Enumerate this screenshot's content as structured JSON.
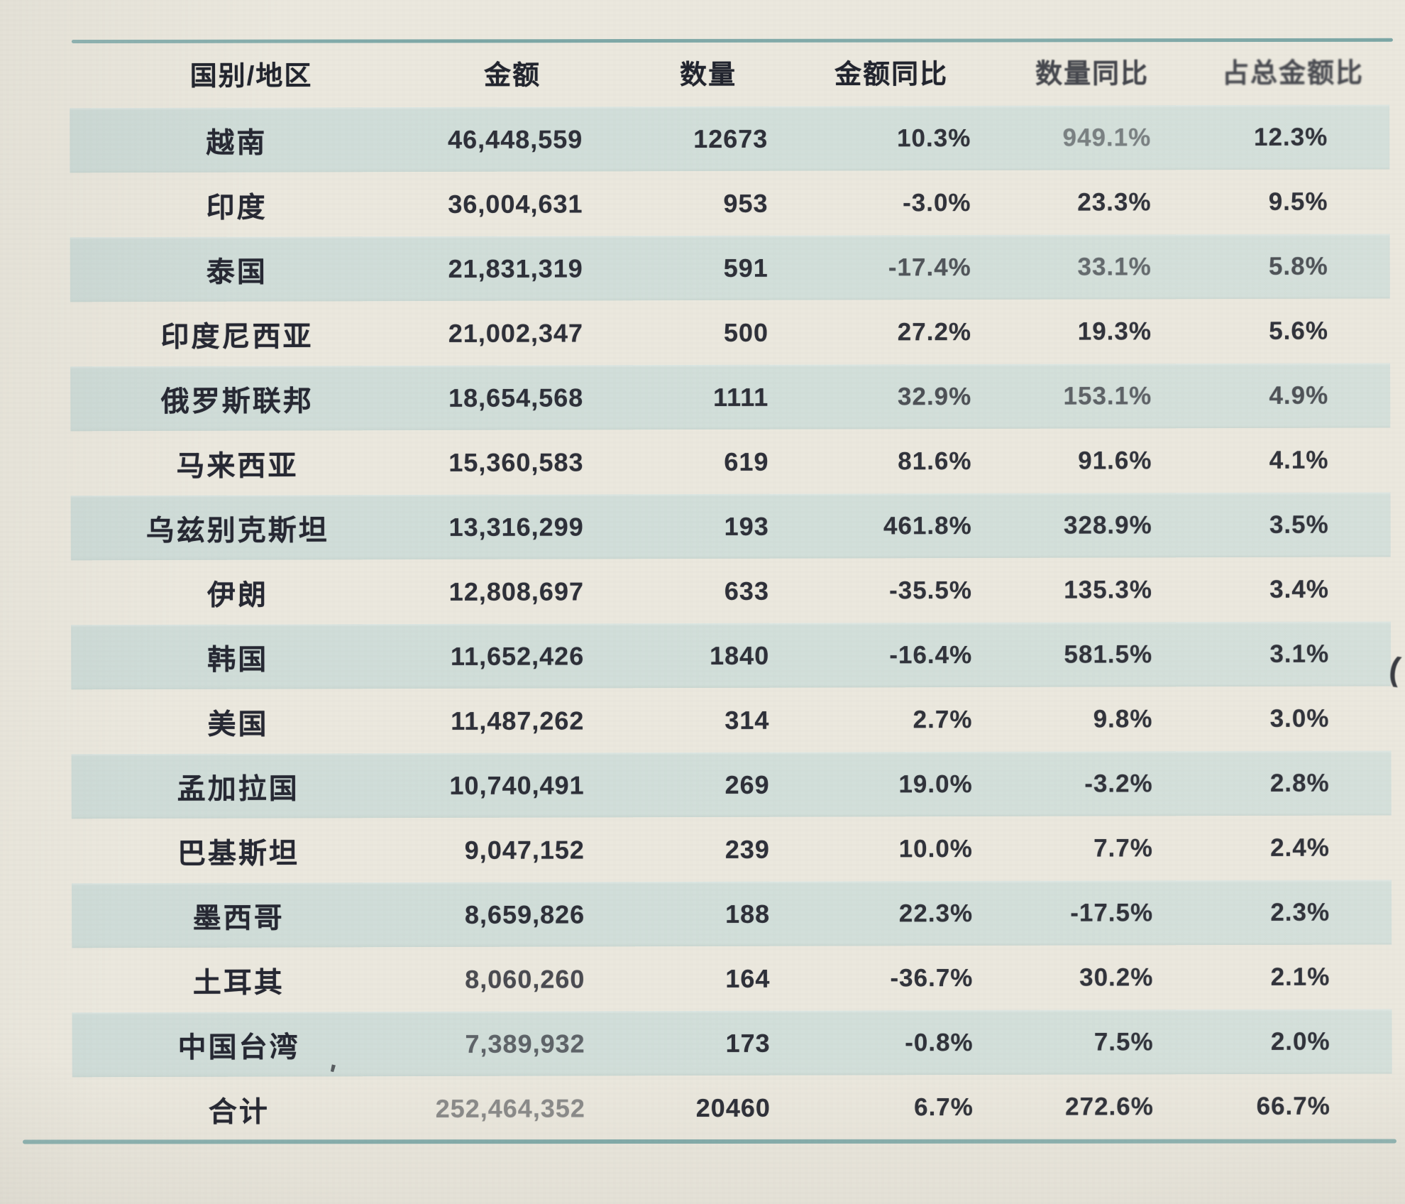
{
  "document": {
    "type": "photographed-table",
    "language": "zh-CN"
  },
  "table": {
    "columns": [
      "国别/地区",
      "金额",
      "数量",
      "金额同比",
      "数量同比",
      "占总金额比"
    ],
    "rows": [
      {
        "region": "越南",
        "amount": "46,448,559",
        "qty": "12673",
        "amount_yoy": "10.3%",
        "qty_yoy": "949.1%",
        "share": "12.3%"
      },
      {
        "region": "印度",
        "amount": "36,004,631",
        "qty": "953",
        "amount_yoy": "-3.0%",
        "qty_yoy": "23.3%",
        "share": "9.5%"
      },
      {
        "region": "泰国",
        "amount": "21,831,319",
        "qty": "591",
        "amount_yoy": "-17.4%",
        "qty_yoy": "33.1%",
        "share": "5.8%"
      },
      {
        "region": "印度尼西亚",
        "amount": "21,002,347",
        "qty": "500",
        "amount_yoy": "27.2%",
        "qty_yoy": "19.3%",
        "share": "5.6%"
      },
      {
        "region": "俄罗斯联邦",
        "amount": "18,654,568",
        "qty": "1111",
        "amount_yoy": "32.9%",
        "qty_yoy": "153.1%",
        "share": "4.9%"
      },
      {
        "region": "马来西亚",
        "amount": "15,360,583",
        "qty": "619",
        "amount_yoy": "81.6%",
        "qty_yoy": "91.6%",
        "share": "4.1%"
      },
      {
        "region": "乌兹别克斯坦",
        "amount": "13,316,299",
        "qty": "193",
        "amount_yoy": "461.8%",
        "qty_yoy": "328.9%",
        "share": "3.5%"
      },
      {
        "region": "伊朗",
        "amount": "12,808,697",
        "qty": "633",
        "amount_yoy": "-35.5%",
        "qty_yoy": "135.3%",
        "share": "3.4%"
      },
      {
        "region": "韩国",
        "amount": "11,652,426",
        "qty": "1840",
        "amount_yoy": "-16.4%",
        "qty_yoy": "581.5%",
        "share": "3.1%"
      },
      {
        "region": "美国",
        "amount": "11,487,262",
        "qty": "314",
        "amount_yoy": "2.7%",
        "qty_yoy": "9.8%",
        "share": "3.0%"
      },
      {
        "region": "孟加拉国",
        "amount": "10,740,491",
        "qty": "269",
        "amount_yoy": "19.0%",
        "qty_yoy": "-3.2%",
        "share": "2.8%"
      },
      {
        "region": "巴基斯坦",
        "amount": "9,047,152",
        "qty": "239",
        "amount_yoy": "10.0%",
        "qty_yoy": "7.7%",
        "share": "2.4%"
      },
      {
        "region": "墨西哥",
        "amount": "8,659,826",
        "qty": "188",
        "amount_yoy": "22.3%",
        "qty_yoy": "-17.5%",
        "share": "2.3%"
      },
      {
        "region": "土耳其",
        "amount": "8,060,260",
        "qty": "164",
        "amount_yoy": "-36.7%",
        "qty_yoy": "30.2%",
        "share": "2.1%"
      },
      {
        "region": "中国台湾",
        "amount": "7,389,932",
        "qty": "173",
        "amount_yoy": "-0.8%",
        "qty_yoy": "7.5%",
        "share": "2.0%"
      },
      {
        "region": "合计",
        "amount": "252,464,352",
        "qty": "20460",
        "amount_yoy": "6.7%",
        "qty_yoy": "272.6%",
        "share": "66.7%"
      }
    ],
    "total_row_label": "合计"
  },
  "colors": {
    "paper": "#ebe8de",
    "row_stripe": "#d0ddd8",
    "rule_line": "#74a3a3",
    "text": "#272932"
  }
}
